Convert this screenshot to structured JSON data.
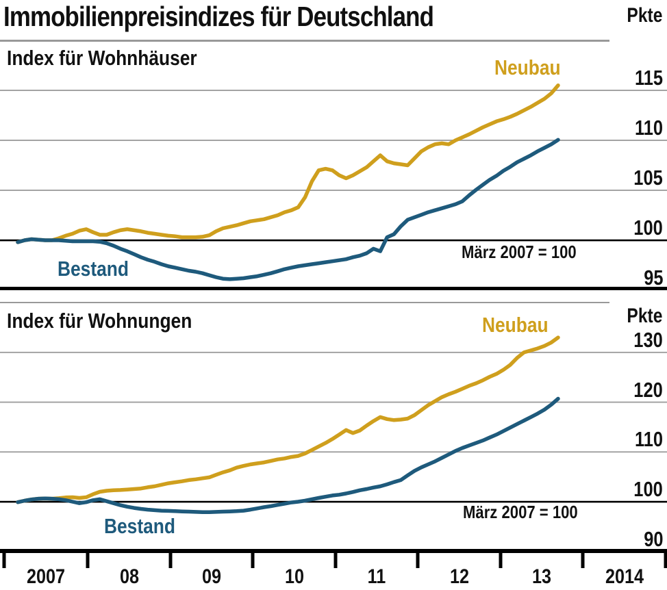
{
  "title": "Immobilienpreisindizes für Deutschland",
  "colors": {
    "neubau_gold": "#cf9f1d",
    "bestand_blue": "#1e5a7c",
    "grid_gray": "#a3a3a3",
    "divider_gray": "#999999",
    "axis_black": "#000000",
    "text_black": "#111111"
  },
  "charts": [
    {
      "panel_title": "Index für Wohnhäuser",
      "unit_label": "Pkte",
      "baseline_note": "März 2007 = 100",
      "neubau_label": "Neubau",
      "bestand_label": "Bestand"
    },
    {
      "panel_title": "Index für Wohnungen",
      "unit_label": "Pkte",
      "baseline_note": "März 2007 = 100",
      "neubau_label": "Neubau",
      "bestand_label": "Bestand"
    }
  ],
  "x_axis": {
    "year_labels": [
      "2007",
      "08",
      "09",
      "10",
      "11",
      "12",
      "13",
      "2014"
    ]
  },
  "chart_data": [
    {
      "type": "line",
      "title": "Index für Wohnhäuser",
      "ylabel": "Pkte",
      "annotation": "März 2007 = 100",
      "ylim": [
        95,
        120
      ],
      "yticks": [
        115,
        110,
        105,
        100,
        95
      ],
      "x_period": "monthly from März 2007",
      "xticklabels": [
        "2007",
        "08",
        "09",
        "10",
        "11",
        "12",
        "13",
        "2014"
      ],
      "legend_position": "inline",
      "grid": true,
      "series": [
        {
          "name": "Neubau",
          "values": [
            99.8,
            100.0,
            100.1,
            100.05,
            100.0,
            100.0,
            100.2,
            100.45,
            100.65,
            100.95,
            101.1,
            100.8,
            100.55,
            100.55,
            100.8,
            101.0,
            101.1,
            101.0,
            100.9,
            100.75,
            100.65,
            100.55,
            100.45,
            100.4,
            100.3,
            100.3,
            100.3,
            100.35,
            100.5,
            100.9,
            101.2,
            101.35,
            101.5,
            101.7,
            101.9,
            102.0,
            102.1,
            102.3,
            102.5,
            102.8,
            103.0,
            103.3,
            104.3,
            105.9,
            107.0,
            107.15,
            107.0,
            106.5,
            106.2,
            106.5,
            106.9,
            107.3,
            107.9,
            108.5,
            107.9,
            107.7,
            107.6,
            107.5,
            108.2,
            108.9,
            109.3,
            109.6,
            109.7,
            109.6,
            110.0,
            110.3,
            110.6,
            110.95,
            111.3,
            111.6,
            111.9,
            112.1,
            112.35,
            112.65,
            113.0,
            113.35,
            113.75,
            114.15,
            114.7,
            115.5
          ]
        },
        {
          "name": "Bestand",
          "values": [
            99.8,
            100.0,
            100.1,
            100.05,
            100.0,
            100.0,
            100.0,
            99.95,
            99.9,
            99.9,
            99.9,
            99.9,
            99.85,
            99.7,
            99.45,
            99.15,
            98.9,
            98.6,
            98.3,
            98.05,
            97.85,
            97.6,
            97.4,
            97.25,
            97.1,
            96.95,
            96.85,
            96.7,
            96.5,
            96.3,
            96.15,
            96.1,
            96.15,
            96.2,
            96.3,
            96.4,
            96.55,
            96.7,
            96.9,
            97.1,
            97.25,
            97.4,
            97.5,
            97.6,
            97.7,
            97.8,
            97.9,
            98.0,
            98.1,
            98.3,
            98.45,
            98.7,
            99.15,
            98.9,
            100.3,
            100.6,
            101.4,
            102.05,
            102.3,
            102.55,
            102.8,
            103.0,
            103.2,
            103.4,
            103.6,
            103.9,
            104.5,
            105.05,
            105.55,
            106.05,
            106.45,
            106.95,
            107.35,
            107.8,
            108.15,
            108.5,
            108.9,
            109.25,
            109.6,
            110.05
          ]
        }
      ]
    },
    {
      "type": "line",
      "title": "Index für Wohnungen",
      "ylabel": "Pkte",
      "annotation": "März 2007 = 100",
      "ylim": [
        90,
        140
      ],
      "yticks": [
        130,
        120,
        110,
        100,
        90
      ],
      "x_period": "monthly from März 2007",
      "xticklabels": [
        "2007",
        "08",
        "09",
        "10",
        "11",
        "12",
        "13",
        "2014"
      ],
      "legend_position": "inline",
      "grid": true,
      "series": [
        {
          "name": "Neubau",
          "values": [
            99.9,
            100.2,
            100.45,
            100.6,
            100.65,
            100.6,
            100.7,
            100.85,
            100.9,
            100.75,
            100.9,
            101.5,
            102.0,
            102.2,
            102.3,
            102.35,
            102.45,
            102.55,
            102.65,
            102.9,
            103.1,
            103.4,
            103.7,
            103.9,
            104.1,
            104.35,
            104.5,
            104.7,
            104.9,
            105.4,
            105.9,
            106.3,
            106.85,
            107.2,
            107.5,
            107.7,
            107.9,
            108.2,
            108.5,
            108.7,
            109.0,
            109.2,
            109.7,
            110.4,
            111.1,
            111.8,
            112.6,
            113.5,
            114.4,
            113.8,
            114.3,
            115.3,
            116.2,
            117.0,
            116.6,
            116.4,
            116.5,
            116.7,
            117.4,
            118.4,
            119.4,
            120.2,
            121.0,
            121.6,
            122.1,
            122.7,
            123.3,
            123.8,
            124.4,
            125.1,
            125.7,
            126.5,
            127.5,
            128.9,
            130.0,
            130.4,
            130.8,
            131.3,
            132.0,
            133.0
          ]
        },
        {
          "name": "Bestand",
          "values": [
            99.9,
            100.2,
            100.45,
            100.6,
            100.65,
            100.6,
            100.5,
            100.3,
            100.0,
            99.7,
            99.9,
            100.3,
            100.5,
            100.1,
            99.7,
            99.3,
            99.0,
            98.75,
            98.55,
            98.4,
            98.3,
            98.2,
            98.15,
            98.1,
            98.05,
            98.0,
            97.95,
            97.9,
            97.9,
            97.95,
            98.0,
            98.05,
            98.1,
            98.2,
            98.4,
            98.65,
            98.9,
            99.1,
            99.35,
            99.6,
            99.85,
            100.0,
            100.2,
            100.5,
            100.75,
            101.0,
            101.25,
            101.4,
            101.65,
            101.95,
            102.3,
            102.55,
            102.85,
            103.1,
            103.5,
            103.95,
            104.35,
            105.3,
            106.2,
            106.9,
            107.5,
            108.1,
            108.8,
            109.5,
            110.2,
            110.8,
            111.3,
            111.8,
            112.3,
            112.9,
            113.5,
            114.2,
            114.9,
            115.6,
            116.3,
            117.0,
            117.7,
            118.5,
            119.5,
            120.7
          ]
        }
      ]
    }
  ]
}
